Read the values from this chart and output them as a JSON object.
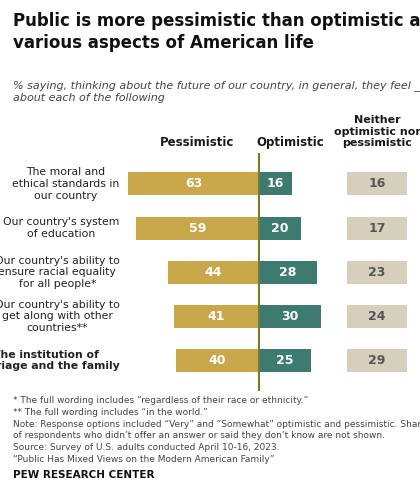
{
  "title": "Public is more pessimistic than optimistic about\nvarious aspects of American life",
  "subtitle": "% saying, thinking about the future of our country, in general, they feel ____\nabout each of the following",
  "categories": [
    "The moral and\nethical standards in\nour country",
    "Our country's system\nof education",
    "Our country's ability to\nensure racial equality\nfor all people*",
    "Our country's ability to\nget along with other\ncountries**",
    "The institution of\nmarriage and the family"
  ],
  "categories_bold": [
    false,
    false,
    false,
    false,
    true
  ],
  "pessimistic": [
    63,
    59,
    44,
    41,
    40
  ],
  "optimistic": [
    16,
    20,
    28,
    30,
    25
  ],
  "neither": [
    16,
    17,
    23,
    24,
    29
  ],
  "pessimistic_color": "#C8A84B",
  "optimistic_color": "#3D7A6F",
  "neither_color": "#D5CFBC",
  "divider_color": "#7A7A2A",
  "col_header_pessimistic": "Pessimistic",
  "col_header_optimistic": "Optimistic",
  "col_header_neither": "Neither\noptimistic nor\npessimistic",
  "footnote_lines": [
    "* The full wording includes “regardless of their race or ethnicity.”",
    "** The full wording includes “in the world.”",
    "Note: Response options included “Very” and “Somewhat” optimistic and pessimistic. Shares",
    "of respondents who didn’t offer an answer or said they don’t know are not shown.",
    "Source: Survey of U.S. adults conducted April 10-16, 2023.",
    "“Public Has Mixed Views on the Modern American Family”"
  ],
  "source_label": "PEW RESEARCH CENTER",
  "background_color": "#FFFFFF",
  "title_fontsize": 12,
  "subtitle_fontsize": 8,
  "bar_label_fontsize": 9,
  "cat_label_fontsize": 7.8,
  "col_header_fontsize": 8.5,
  "neither_fontsize": 9,
  "footnote_fontsize": 6.5,
  "source_fontsize": 7.5
}
